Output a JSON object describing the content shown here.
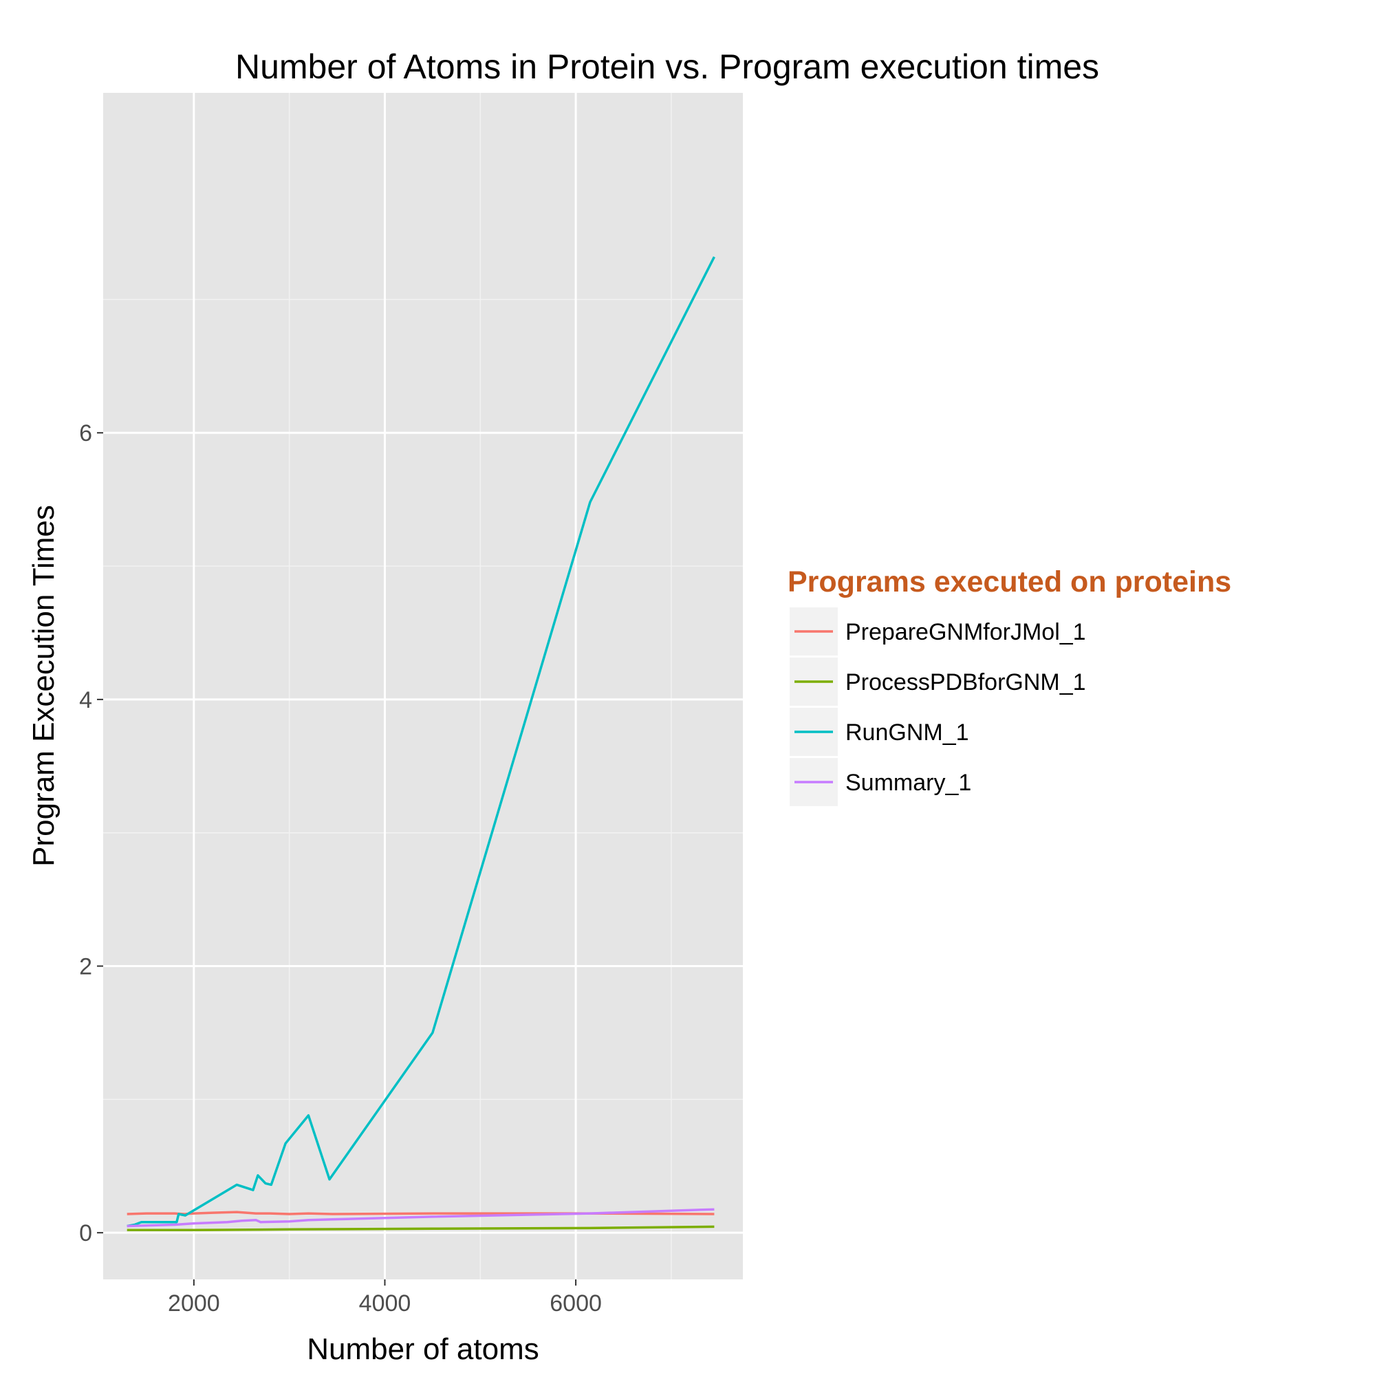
{
  "chart_data": {
    "type": "line",
    "title": "Number of Atoms in Protein vs. Program execution times",
    "xlabel": "Number of atoms",
    "ylabel": "Program Excecution Times",
    "xlim": [
      1050,
      7750
    ],
    "ylim": [
      -0.35,
      8.55
    ],
    "xticks": [
      2000,
      4000,
      6000
    ],
    "xminor": [
      1000,
      3000,
      5000,
      7000
    ],
    "yticks": [
      0,
      2,
      4,
      6
    ],
    "yminor": [
      1,
      3,
      5,
      7
    ],
    "grid": true,
    "legend": {
      "title": "Programs executed on proteins",
      "title_color": "#C65A1E",
      "position": "right"
    },
    "series": [
      {
        "name": "PrepareGNMforJMol_1",
        "color": "#F8766D",
        "points": [
          [
            1300,
            0.14
          ],
          [
            1500,
            0.145
          ],
          [
            1800,
            0.145
          ],
          [
            1900,
            0.14
          ],
          [
            2000,
            0.145
          ],
          [
            2200,
            0.15
          ],
          [
            2450,
            0.155
          ],
          [
            2650,
            0.145
          ],
          [
            2800,
            0.145
          ],
          [
            3000,
            0.14
          ],
          [
            3200,
            0.145
          ],
          [
            3450,
            0.14
          ],
          [
            4500,
            0.145
          ],
          [
            6150,
            0.145
          ],
          [
            7450,
            0.14
          ]
        ]
      },
      {
        "name": "ProcessPDBforGNM_1",
        "color": "#7CAE00",
        "points": [
          [
            1300,
            0.02
          ],
          [
            2000,
            0.02
          ],
          [
            3000,
            0.025
          ],
          [
            4500,
            0.03
          ],
          [
            6150,
            0.035
          ],
          [
            7450,
            0.045
          ]
        ]
      },
      {
        "name": "RunGNM_1",
        "color": "#00BFC4",
        "points": [
          [
            1300,
            0.05
          ],
          [
            1380,
            0.06
          ],
          [
            1450,
            0.08
          ],
          [
            1700,
            0.08
          ],
          [
            1820,
            0.08
          ],
          [
            1840,
            0.14
          ],
          [
            1910,
            0.13
          ],
          [
            2450,
            0.36
          ],
          [
            2620,
            0.32
          ],
          [
            2670,
            0.43
          ],
          [
            2750,
            0.37
          ],
          [
            2810,
            0.36
          ],
          [
            2960,
            0.67
          ],
          [
            3200,
            0.88
          ],
          [
            3420,
            0.4
          ],
          [
            4500,
            1.5
          ],
          [
            6150,
            5.48
          ],
          [
            7450,
            7.32
          ]
        ]
      },
      {
        "name": "Summary_1",
        "color": "#C77CFF",
        "points": [
          [
            1300,
            0.05
          ],
          [
            1800,
            0.06
          ],
          [
            2000,
            0.07
          ],
          [
            2350,
            0.08
          ],
          [
            2500,
            0.09
          ],
          [
            2650,
            0.095
          ],
          [
            2700,
            0.08
          ],
          [
            3000,
            0.085
          ],
          [
            3200,
            0.095
          ],
          [
            3450,
            0.1
          ],
          [
            4500,
            0.12
          ],
          [
            6150,
            0.145
          ],
          [
            7450,
            0.175
          ]
        ]
      }
    ]
  }
}
